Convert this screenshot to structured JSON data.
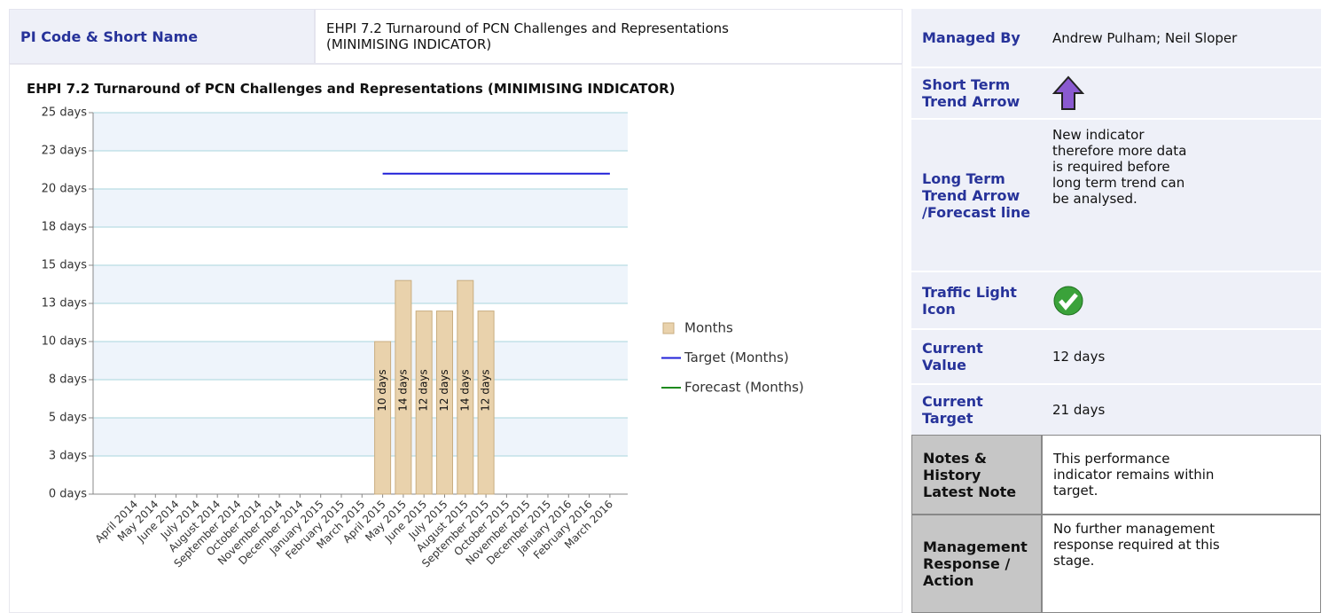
{
  "header": {
    "label": "PI Code & Short Name",
    "value": "EHPI 7.2 Turnaround of PCN Challenges and Representations (MINIMISING INDICATOR)"
  },
  "chart_data": {
    "type": "bar",
    "title": "EHPI 7.2 Turnaround of PCN Challenges and Representations (MINIMISING INDICATOR)",
    "categories": [
      "April 2014",
      "May 2014",
      "June 2014",
      "July 2014",
      "August 2014",
      "September 2014",
      "October 2014",
      "November 2014",
      "December 2014",
      "January 2015",
      "February 2015",
      "March 2015",
      "April 2015",
      "May 2015",
      "June 2015",
      "July 2015",
      "August 2015",
      "September 2015",
      "October 2015",
      "November 2015",
      "December 2015",
      "January 2016",
      "February 2016",
      "March 2016"
    ],
    "series": [
      {
        "name": "Months",
        "color": "#e9d2ac",
        "values": [
          null,
          null,
          null,
          null,
          null,
          null,
          null,
          null,
          null,
          null,
          null,
          null,
          10,
          14,
          12,
          12,
          14,
          12,
          null,
          null,
          null,
          null,
          null,
          null
        ],
        "value_labels": [
          null,
          null,
          null,
          null,
          null,
          null,
          null,
          null,
          null,
          null,
          null,
          null,
          "10 days",
          "14 days",
          "12 days",
          "12 days",
          "14 days",
          "12 days",
          null,
          null,
          null,
          null,
          null,
          null
        ]
      },
      {
        "name": "Target (Months)",
        "color": "#2020d8",
        "type": "line",
        "values": [
          null,
          null,
          null,
          null,
          null,
          null,
          null,
          null,
          null,
          null,
          null,
          null,
          21,
          21,
          21,
          21,
          21,
          21,
          21,
          21,
          21,
          21,
          21,
          21
        ]
      },
      {
        "name": "Forecast (Months)",
        "color": "#1e8a1e",
        "type": "line",
        "values": [
          null,
          null,
          null,
          null,
          null,
          null,
          null,
          null,
          null,
          null,
          null,
          null,
          null,
          null,
          null,
          null,
          null,
          null,
          null,
          null,
          null,
          null,
          null,
          null
        ]
      }
    ],
    "ylim": [
      0,
      25
    ],
    "yticks": [
      {
        "value": 0,
        "label": "0 days"
      },
      {
        "value": 2.5,
        "label": "3 days"
      },
      {
        "value": 5,
        "label": "5 days"
      },
      {
        "value": 7.5,
        "label": "8 days"
      },
      {
        "value": 10,
        "label": "10 days"
      },
      {
        "value": 12.5,
        "label": "13 days"
      },
      {
        "value": 15,
        "label": "15 days"
      },
      {
        "value": 17.5,
        "label": "18 days"
      },
      {
        "value": 20,
        "label": "20 days"
      },
      {
        "value": 22.5,
        "label": "23 days"
      },
      {
        "value": 25,
        "label": "25 days"
      }
    ],
    "grid": true,
    "legend": "right"
  },
  "details": [
    {
      "label": "Managed By",
      "value": "Andrew Pulham; Neil Sloper"
    },
    {
      "label": "Short Term Trend Arrow"
    },
    {
      "label": "Long Term Trend Arrow /Forecast line",
      "value": "New indicator therefore more data is required before long term trend can be analysed."
    },
    {
      "label": "Traffic Light Icon"
    },
    {
      "label": "Current Value",
      "value": "12 days"
    },
    {
      "label": "Current Target",
      "value": "21 days"
    },
    {
      "label": "Notes & History Latest Note",
      "value": "This performance indicator remains within target."
    },
    {
      "label": "Management Response / Action",
      "value": "No further management response required at this stage."
    }
  ]
}
